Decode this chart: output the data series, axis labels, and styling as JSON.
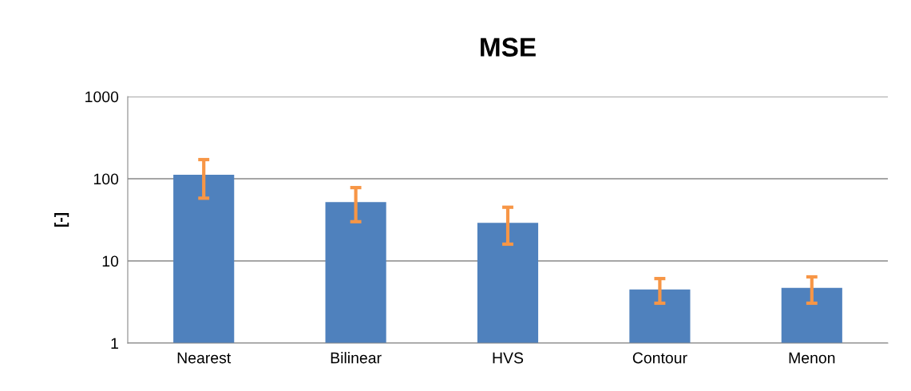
{
  "chart_data": {
    "type": "bar",
    "title": "MSE",
    "ylabel": "[-]",
    "categories": [
      "Nearest",
      "Bilinear",
      "HVS",
      "Contour",
      "Menon"
    ],
    "series": [
      {
        "color": "#4f81bd",
        "values": [
          112,
          52,
          29,
          4.5,
          4.7
        ],
        "errors": [
          [
            58,
            171
          ],
          [
            30,
            78
          ],
          [
            16,
            45
          ],
          [
            3.06,
            6.1
          ],
          [
            3.06,
            6.4
          ]
        ]
      }
    ],
    "log": "y",
    "ylim": [
      1,
      1000
    ],
    "yticks": [
      1,
      10,
      100,
      1000
    ],
    "grid": "y",
    "legend": false
  }
}
